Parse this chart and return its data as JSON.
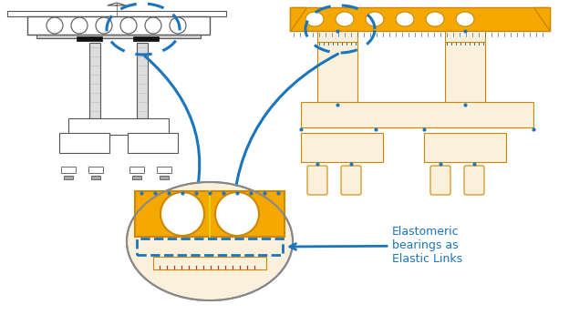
{
  "background_color": "#ffffff",
  "orange_color": "#F5A800",
  "light_beige": "#FAF0DC",
  "blue_color": "#1B75BC",
  "gray_line": "#888888",
  "dark_gray": "#555555",
  "black": "#111111",
  "annotation_text": "Elastomeric\nbearings as\nElastic Links",
  "annotation_fontsize": 9
}
